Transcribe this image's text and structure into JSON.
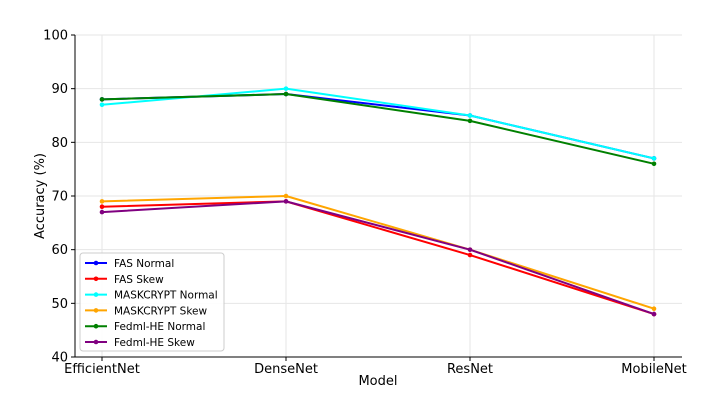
{
  "chart_data": {
    "type": "line",
    "title": "",
    "xlabel": "Model",
    "ylabel": "Accuracy (%)",
    "categories": [
      "EfficientNet",
      "DenseNet",
      "ResNet",
      "MobileNet"
    ],
    "ylim": [
      40,
      100
    ],
    "yticks": [
      40,
      50,
      60,
      70,
      80,
      90,
      100
    ],
    "grid": true,
    "legend_position": "lower-left",
    "series": [
      {
        "name": "FAS Normal",
        "color": "#0000ff",
        "values": [
          88,
          89,
          85,
          77
        ]
      },
      {
        "name": "FAS Skew",
        "color": "#ff0000",
        "values": [
          68,
          69,
          59,
          48
        ]
      },
      {
        "name": "MASKCRYPT Normal",
        "color": "#00ffff",
        "values": [
          87,
          90,
          85,
          77
        ]
      },
      {
        "name": "MASKCRYPT Skew",
        "color": "#ffa500",
        "values": [
          69,
          70,
          60,
          49
        ]
      },
      {
        "name": "Fedml-HE Normal",
        "color": "#008000",
        "values": [
          88,
          89,
          84,
          76
        ]
      },
      {
        "name": "Fedml-HE Skew",
        "color": "#800080",
        "values": [
          67,
          69,
          60,
          48
        ]
      }
    ]
  }
}
